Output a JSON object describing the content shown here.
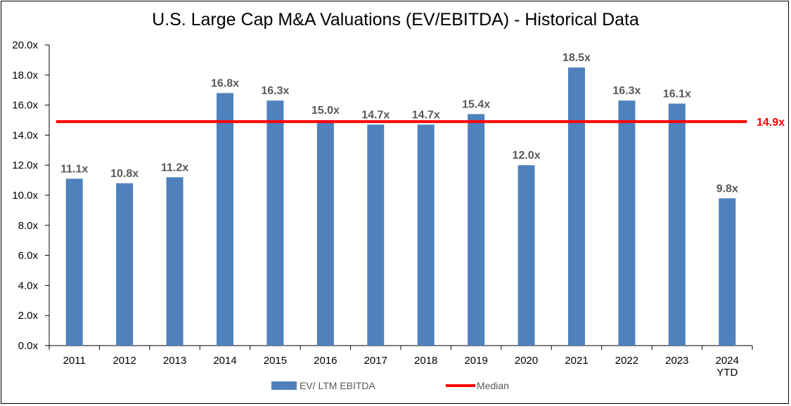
{
  "chart_data": {
    "type": "bar",
    "title": "U.S. Large Cap M&A Valuations (EV/EBITDA) - Historical Data",
    "categories": [
      "2011",
      "2012",
      "2013",
      "2014",
      "2015",
      "2016",
      "2017",
      "2018",
      "2019",
      "2020",
      "2021",
      "2022",
      "2023",
      "2024\nYTD"
    ],
    "series": [
      {
        "name": "EV/ LTM EBITDA",
        "type": "bar",
        "color": "#4f81bd",
        "values": [
          11.1,
          10.8,
          11.2,
          16.8,
          16.3,
          15.0,
          14.7,
          14.7,
          15.4,
          12.0,
          18.5,
          16.3,
          16.1,
          9.8
        ],
        "labels": [
          "11.1x",
          "10.8x",
          "11.2x",
          "16.8x",
          "16.3x",
          "15.0x",
          "14.7x",
          "14.7x",
          "15.4x",
          "12.0x",
          "18.5x",
          "16.3x",
          "16.1x",
          "9.8x"
        ]
      },
      {
        "name": "Median",
        "type": "line",
        "color": "#ff0000",
        "value": 14.9,
        "label": "14.9x"
      }
    ],
    "ylim": [
      0,
      20
    ],
    "yticks": [
      "0.0x",
      "2.0x",
      "4.0x",
      "6.0x",
      "8.0x",
      "10.0x",
      "12.0x",
      "14.0x",
      "16.0x",
      "18.0x",
      "20.0x"
    ],
    "xlabel": "",
    "ylabel": "",
    "grid": false,
    "legend": "bottom"
  }
}
